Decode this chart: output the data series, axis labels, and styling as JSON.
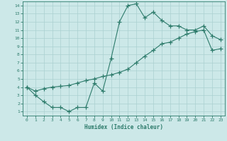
{
  "xlabel": "Humidex (Indice chaleur)",
  "xlim": [
    -0.5,
    23.5
  ],
  "ylim": [
    0.5,
    14.5
  ],
  "xticks": [
    0,
    1,
    2,
    3,
    4,
    5,
    6,
    7,
    8,
    9,
    10,
    11,
    12,
    13,
    14,
    15,
    16,
    17,
    18,
    19,
    20,
    21,
    22,
    23
  ],
  "yticks": [
    1,
    2,
    3,
    4,
    5,
    6,
    7,
    8,
    9,
    10,
    11,
    12,
    13,
    14
  ],
  "bg_color": "#cce8e8",
  "line_color": "#2d7b6b",
  "grid_color": "#aad0d0",
  "line1_x": [
    0,
    1,
    2,
    3,
    4,
    5,
    6,
    7,
    8,
    9,
    10,
    11,
    12,
    13,
    14,
    15,
    16,
    17,
    18,
    19,
    20,
    21,
    22,
    23
  ],
  "line1_y": [
    4.0,
    3.0,
    2.2,
    1.5,
    1.5,
    1.0,
    1.5,
    1.5,
    4.5,
    3.5,
    7.5,
    12.0,
    14.0,
    14.2,
    12.5,
    13.2,
    12.2,
    11.5,
    11.5,
    11.0,
    11.0,
    11.5,
    10.3,
    9.8
  ],
  "line2_x": [
    0,
    1,
    2,
    3,
    4,
    5,
    6,
    7,
    8,
    9,
    10,
    11,
    12,
    13,
    14,
    15,
    16,
    17,
    18,
    19,
    20,
    21,
    22,
    23
  ],
  "line2_y": [
    4.0,
    3.5,
    3.8,
    4.0,
    4.1,
    4.2,
    4.5,
    4.8,
    5.0,
    5.3,
    5.5,
    5.8,
    6.2,
    7.0,
    7.8,
    8.5,
    9.3,
    9.5,
    10.0,
    10.5,
    10.8,
    11.0,
    8.5,
    8.7
  ]
}
